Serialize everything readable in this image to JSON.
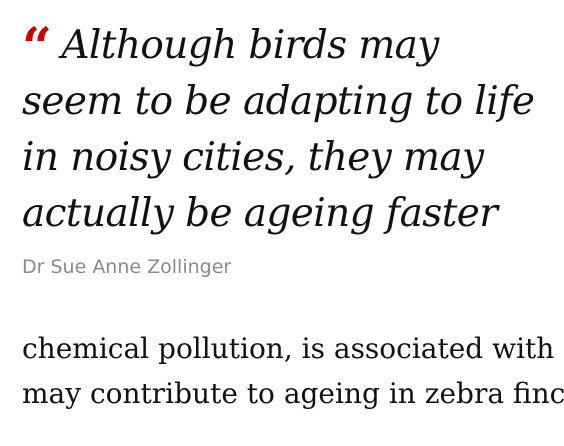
{
  "pullquote": {
    "quote_mark": "“",
    "lines": [
      "Although birds may",
      "seem to be adapting to life",
      "in noisy cities, they may",
      "actually be ageing faster"
    ],
    "attribution": "Dr Sue Anne Zollinger"
  },
  "article": {
    "lines": [
      "chemical pollution, is associated with",
      "may contribute to ageing in zebra finches"
    ]
  },
  "colors": {
    "quote_mark": "#c70000",
    "text": "#121212",
    "attribution": "#8a8a8a",
    "background": "#ffffff"
  }
}
